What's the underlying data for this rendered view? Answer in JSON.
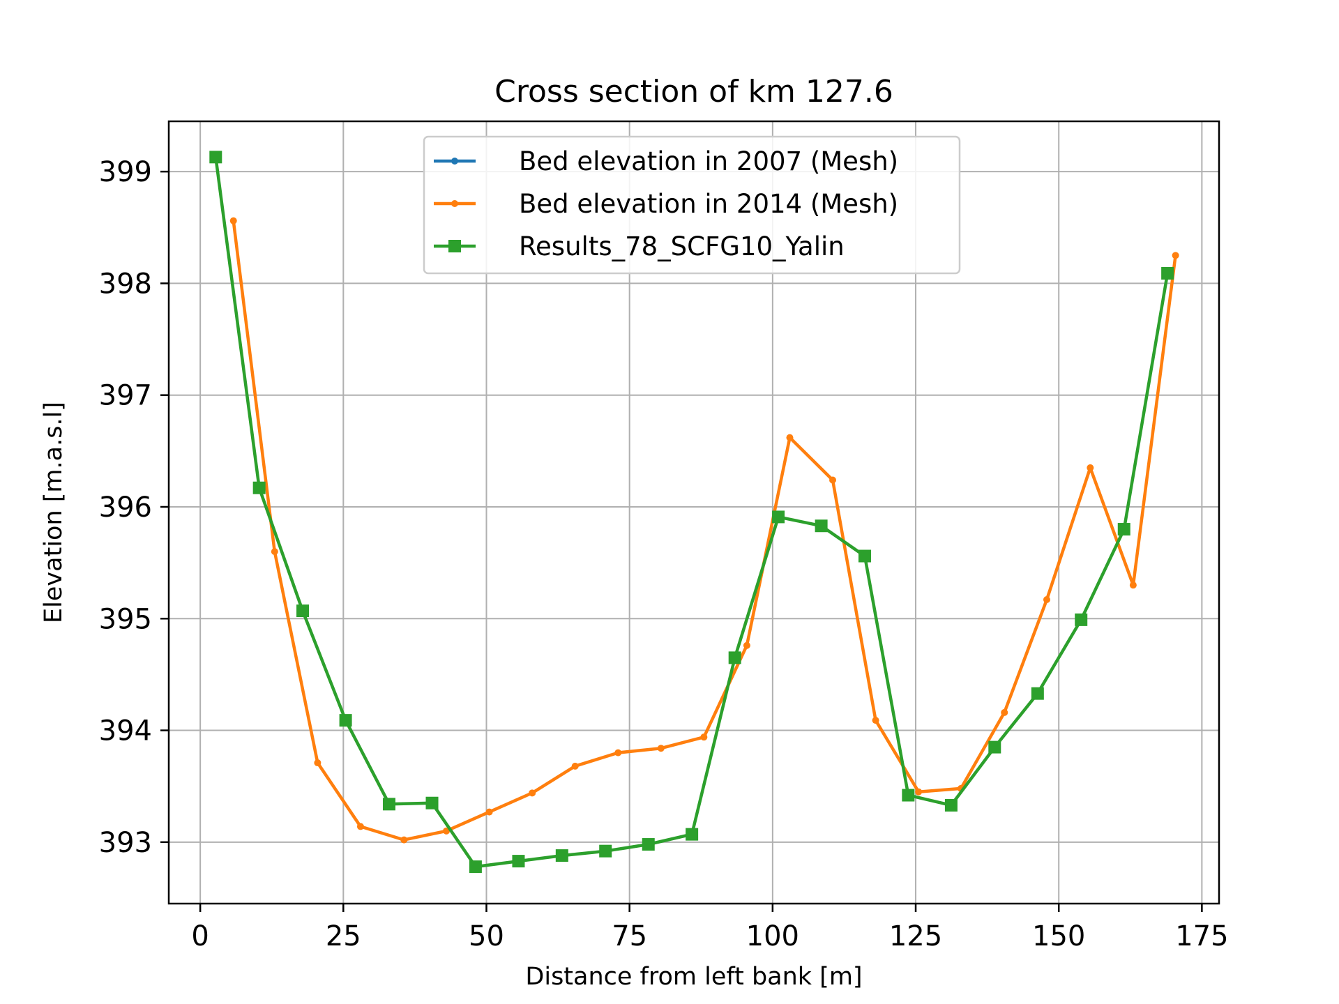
{
  "chart_data": {
    "type": "line",
    "title": "Cross section of km 127.6",
    "xlabel": "Distance from left bank [m]",
    "ylabel": "Elevation [m.a.s.l]",
    "xlim": [
      -5.5,
      178
    ],
    "ylim": [
      392.45,
      399.45
    ],
    "xticks": [
      0,
      25,
      50,
      75,
      100,
      125,
      150,
      175
    ],
    "yticks": [
      393,
      394,
      395,
      396,
      397,
      398,
      399
    ],
    "grid": true,
    "legend_position": "upper-center",
    "series": [
      {
        "name": "Bed elevation in 2007 (Mesh)",
        "color": "#1f77b4",
        "marker": "circle",
        "x": [],
        "y": []
      },
      {
        "name": "Bed elevation in 2014 (Mesh)",
        "color": "#ff7f0e",
        "marker": "circle",
        "x": [
          5.8,
          13.0,
          20.5,
          28.0,
          35.6,
          43.0,
          50.5,
          58.0,
          65.5,
          73.0,
          80.5,
          88.0,
          95.5,
          103.0,
          110.5,
          118.0,
          125.5,
          132.9,
          140.5,
          147.9,
          155.5,
          163.0,
          170.4
        ],
        "y": [
          398.56,
          395.6,
          393.71,
          393.14,
          393.02,
          393.1,
          393.27,
          393.44,
          393.68,
          393.8,
          393.84,
          393.94,
          394.76,
          396.62,
          396.24,
          394.09,
          393.45,
          393.48,
          394.16,
          395.17,
          396.35,
          395.3,
          398.25
        ]
      },
      {
        "name": "Results_78_SCFG10_Yalin",
        "color": "#2ca02c",
        "marker": "square",
        "x": [
          2.7,
          10.3,
          17.9,
          25.4,
          33.0,
          40.5,
          48.1,
          55.6,
          63.2,
          70.8,
          78.3,
          85.9,
          93.4,
          101.0,
          108.5,
          116.1,
          123.7,
          131.2,
          138.8,
          146.3,
          153.9,
          161.4,
          169.0
        ],
        "y": [
          399.13,
          396.17,
          395.07,
          394.09,
          393.34,
          393.35,
          392.78,
          392.83,
          392.88,
          392.92,
          392.98,
          393.07,
          394.65,
          395.91,
          395.83,
          395.56,
          393.42,
          393.33,
          393.85,
          394.33,
          394.99,
          395.8,
          398.09
        ]
      }
    ]
  }
}
